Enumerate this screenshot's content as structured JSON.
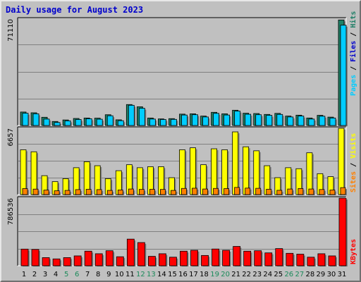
{
  "chart_data": {
    "type": "bar",
    "title": "Daily usage for August 2023",
    "colors": {
      "hits": "#1e7f66",
      "files": "#00ccff",
      "pages": "#00ccff",
      "sites": "#ff8000",
      "visits": "#ffff00",
      "kbytes": "#ff0000",
      "title": "#0000cc",
      "weekend_label": "#1a8a5a",
      "weekday_label": "#000000",
      "plot_bg": "#c0c0c0"
    },
    "days": [
      "1",
      "2",
      "3",
      "4",
      "5",
      "6",
      "7",
      "8",
      "9",
      "10",
      "11",
      "12",
      "13",
      "14",
      "15",
      "16",
      "17",
      "18",
      "19",
      "20",
      "21",
      "22",
      "23",
      "24",
      "25",
      "26",
      "27",
      "28",
      "29",
      "30",
      "31"
    ],
    "weekend_days": [
      "5",
      "6",
      "12",
      "13",
      "19",
      "20",
      "26",
      "27"
    ],
    "top_panel": {
      "max_label": "71110",
      "ymax": 71110,
      "legend": [
        "Pages",
        "/",
        "Files",
        "/",
        "Hits"
      ],
      "legend_colors": [
        "#00ccff",
        "#000000",
        "#0000cc",
        "#000000",
        "#1e7f66"
      ],
      "series": [
        {
          "name": "Hits",
          "values": [
            9000,
            8500,
            5500,
            2700,
            3700,
            4700,
            5000,
            4900,
            7200,
            3800,
            14000,
            12500,
            5000,
            4400,
            4600,
            7600,
            7800,
            6300,
            8800,
            7800,
            10200,
            8200,
            8000,
            7400,
            8100,
            6300,
            6900,
            5000,
            6800,
            5600,
            70500
          ]
        },
        {
          "name": "Files",
          "values": [
            8200,
            7800,
            4300,
            2000,
            3100,
            4000,
            4500,
            4200,
            6500,
            3200,
            13500,
            11500,
            4300,
            4000,
            4100,
            7000,
            7200,
            5700,
            8100,
            7000,
            9600,
            7500,
            7200,
            6800,
            7400,
            5700,
            6300,
            4300,
            6200,
            5000,
            67000
          ]
        },
        {
          "name": "Pages",
          "values": [
            0,
            0,
            0,
            0,
            0,
            0,
            0,
            0,
            0,
            0,
            0,
            0,
            0,
            0,
            0,
            0,
            0,
            0,
            0,
            0,
            0,
            0,
            0,
            0,
            0,
            0,
            0,
            0,
            0,
            0,
            0
          ]
        }
      ]
    },
    "middle_panel": {
      "max_label": "6657",
      "ymax": 6657,
      "legend": [
        "Sites",
        "/",
        "Visits"
      ],
      "legend_colors": [
        "#ff8000",
        "#000000",
        "#ffff00"
      ],
      "series": [
        {
          "name": "Visits",
          "values": [
            4500,
            4300,
            1900,
            1300,
            1600,
            2700,
            3300,
            2900,
            1600,
            2400,
            3000,
            2700,
            2800,
            2800,
            1700,
            4500,
            4700,
            3000,
            4600,
            4500,
            6300,
            4800,
            4400,
            2900,
            1700,
            2700,
            2600,
            4200,
            2100,
            1800,
            6657
          ]
        },
        {
          "name": "Sites",
          "values": [
            600,
            550,
            450,
            380,
            420,
            500,
            530,
            500,
            420,
            460,
            560,
            520,
            530,
            520,
            420,
            620,
            640,
            560,
            620,
            600,
            720,
            650,
            630,
            540,
            430,
            560,
            610,
            560,
            510,
            460,
            700
          ]
        }
      ]
    },
    "bottom_panel": {
      "max_label": "786536",
      "ymax": 786536,
      "legend": [
        "KBytes"
      ],
      "legend_colors": [
        "#ff0000"
      ],
      "series": [
        {
          "name": "KBytes",
          "values": [
            194000,
            190000,
            95000,
            80000,
            95000,
            115000,
            170000,
            140000,
            175000,
            105000,
            310000,
            270000,
            110000,
            140000,
            100000,
            170000,
            180000,
            120000,
            195000,
            180000,
            225000,
            170000,
            175000,
            150000,
            200000,
            145000,
            135000,
            100000,
            140000,
            115000,
            786536
          ]
        }
      ]
    }
  }
}
